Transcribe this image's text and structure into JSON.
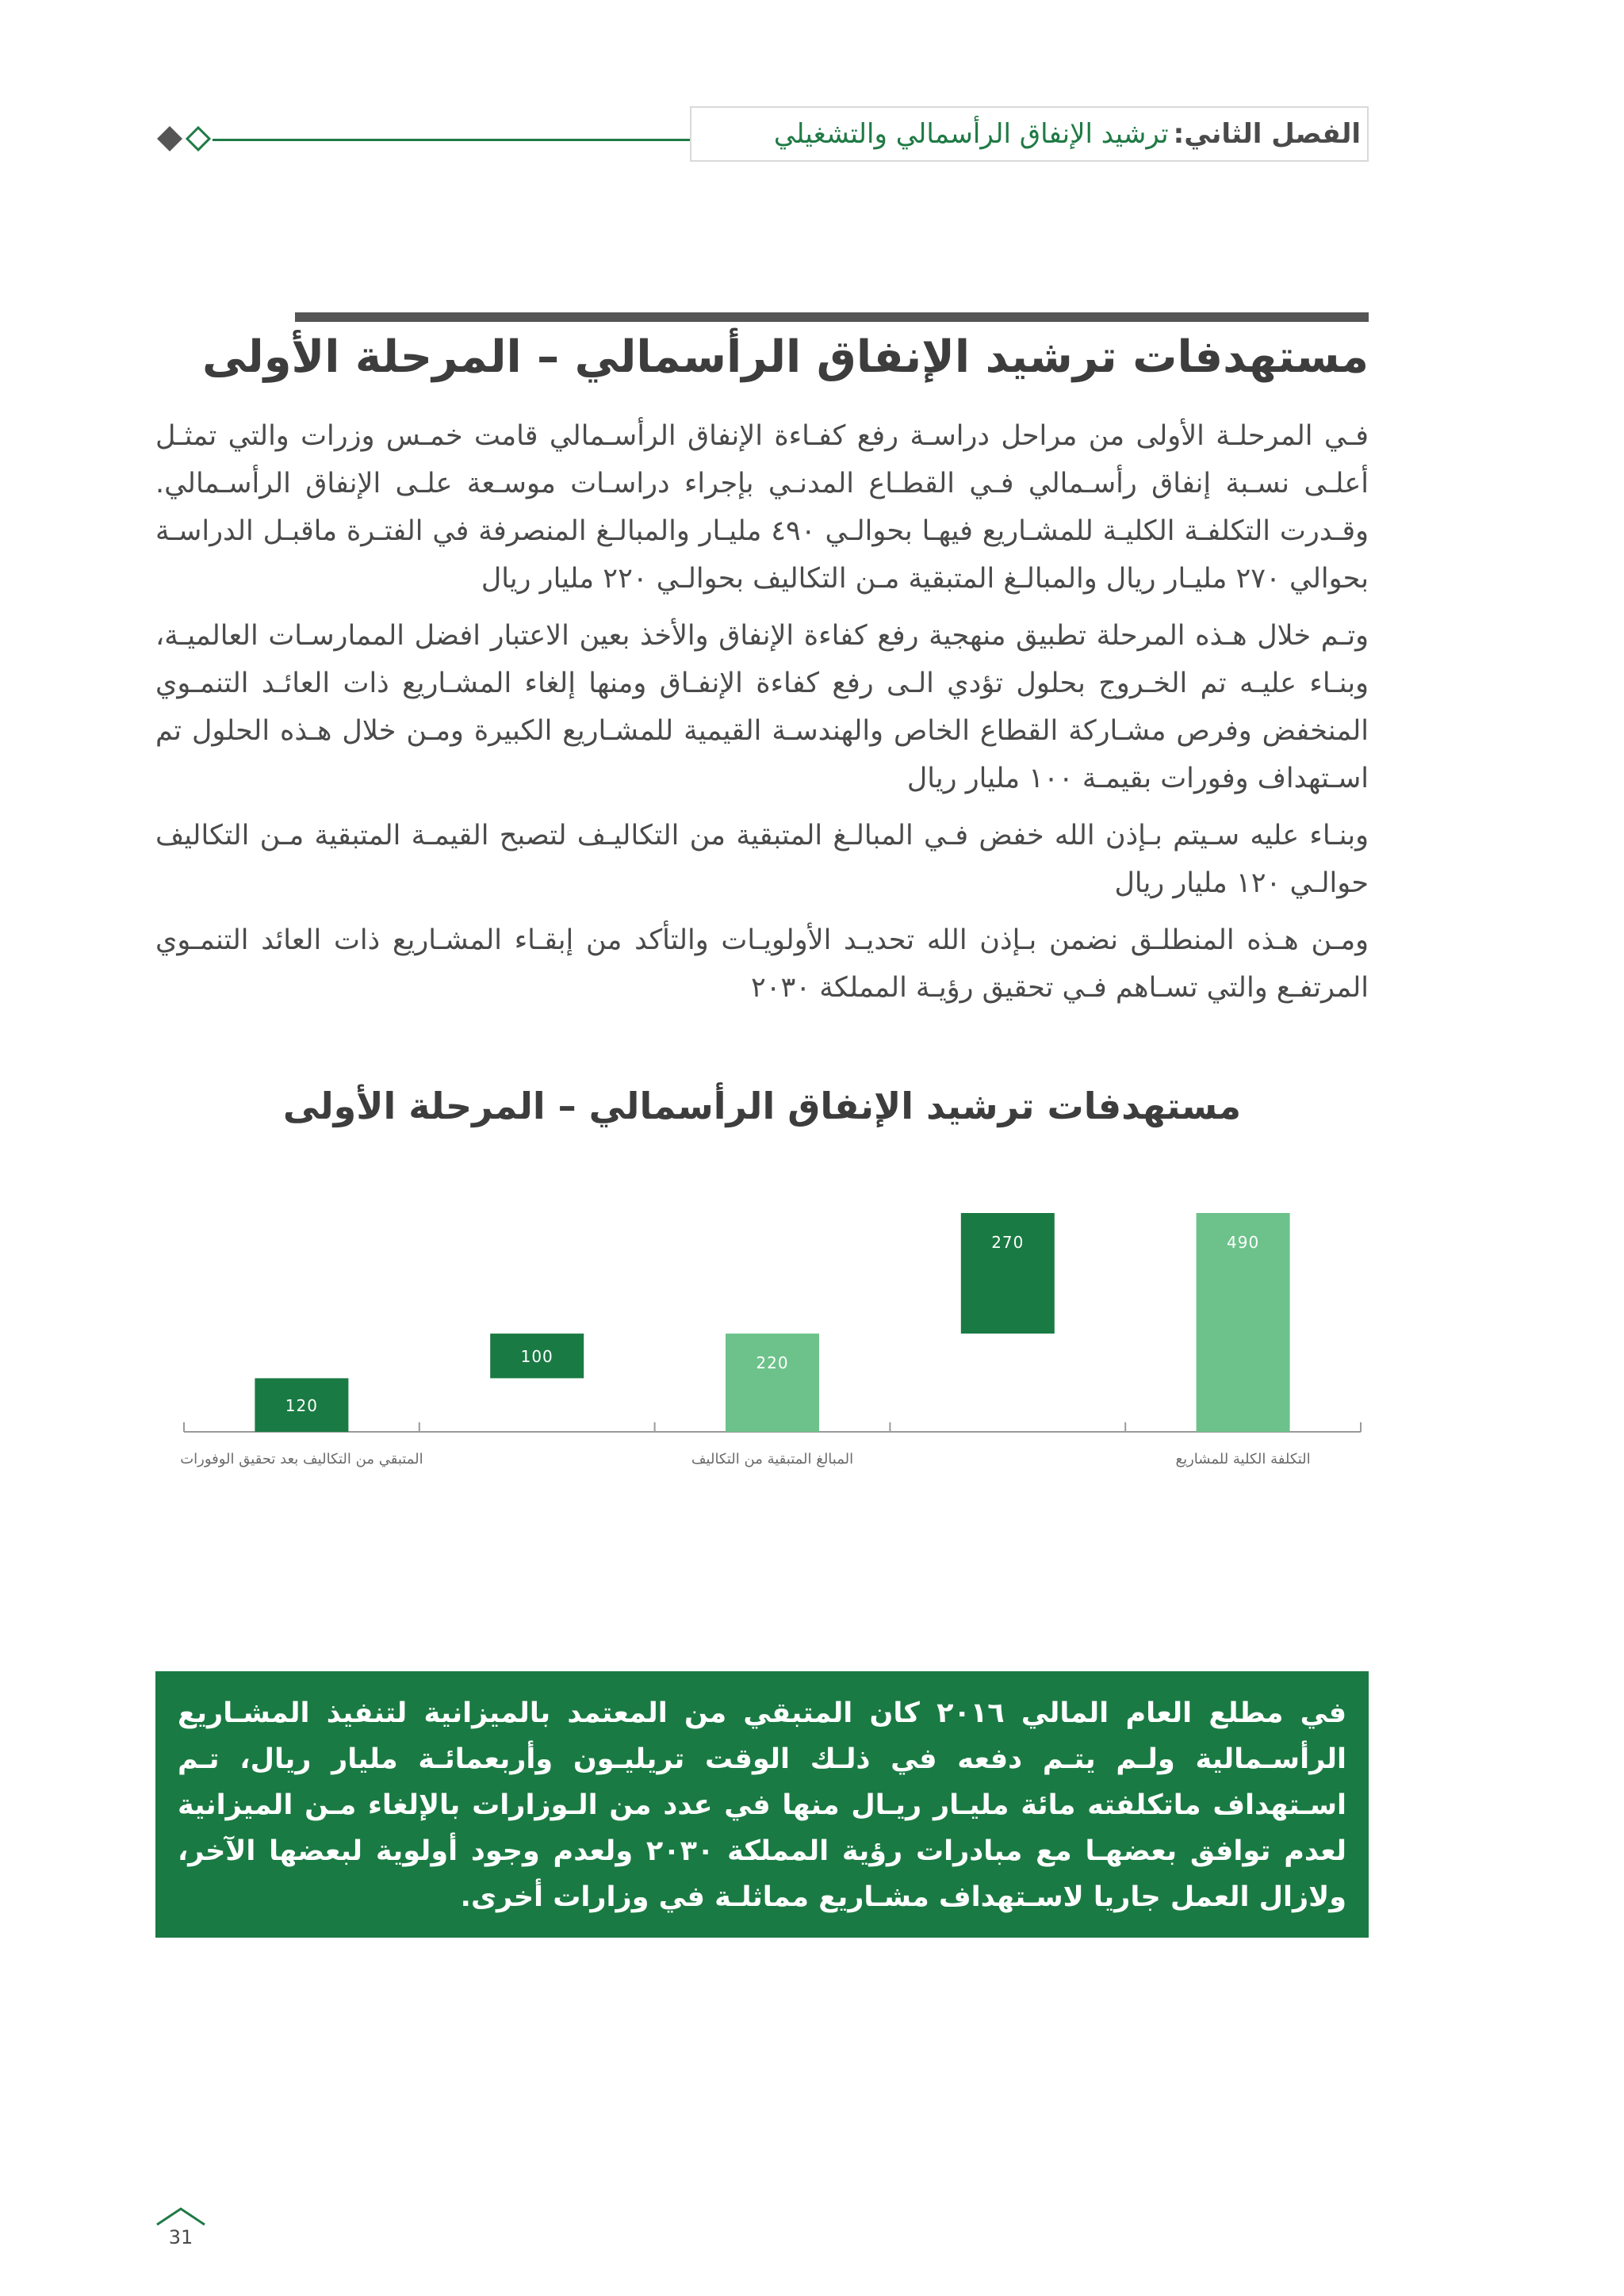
{
  "header": {
    "chapter_label": "الفصل الثاني:",
    "chapter_title": "ترشيد الإنفاق الرأسمالي والتشغيلي"
  },
  "section": {
    "title": "مستهدفات ترشيد الإنفاق الرأسمالي – المرحلة الأولى",
    "paragraphs": [
      "فـي المرحلـة الأولى من مراحل دراسـة رفع كفـاءة الإنفاق الرأسـمالي قامت خمـس وزرات والتي تمثـل أعلـى نسـبة إنفاق رأسـمالي فـي القطـاع المدنـي بإجراء دراسـات موسـعة علـى الإنفاق الرأسـمالي. وقـدرت التكلفـة الكليـة للمشـاريع فيهـا بحوالـي ٤٩٠ مليـار والمبالـغ المنصرفة في الفتـرة ماقبـل الدراسـة بحوالي ٢٧٠ مليـار ريال والمبالـغ المتبقية مـن التكاليف بحوالـي ٢٢٠ مليار ريال",
      "وتـم خلال هـذه المرحلة تطبيق منهجية رفع كفاءة الإنفاق والأخذ بعين الاعتبار افضل الممارسـات العالميـة، وبنـاء عليـه تم الخـروج بحلول تؤدي الـى رفع كفاءة الإنفـاق ومنها إلغاء المشـاريع ذات العائـد التنمـوي المنخفض وفرص مشـاركة القطاع الخاص والهندسـة القيمية للمشـاريع الكبيرة ومـن خلال هـذه الحلول تم اسـتهداف وفورات بقيمـة ١٠٠ مليار ريال",
      "وبنـاء عليه سـيتم بـإذن الله خفض فـي المبالـغ المتبقية من التكاليـف لتصبح القيمـة المتبقية مـن التكاليف حوالـي ١٢٠ مليار ريال",
      "ومـن هـذه المنطلـق نضمن بـإذن الله تحديـد الأولويـات والتأكد من إبقـاء المشـاريع ذات العائد التنمـوي المرتفـع والتي تسـاهم فـي تحقيق رؤيـة المملكة ٢٠٣٠"
    ]
  },
  "chart_data": {
    "type": "bar",
    "subtype": "waterfall",
    "title": "مستهدفات ترشيد الإنفاق الرأسمالي – المرحلة الأولى",
    "categories": [
      "المتبقي من التكاليف بعد تحقيق الوفورات",
      "",
      "المبالغ المتبقية من التكاليف",
      "",
      "التكلفة الكلية للمشاريع"
    ],
    "bars": [
      {
        "value": 120,
        "base": 0,
        "label": "120",
        "color": "#1a7a43"
      },
      {
        "value": 100,
        "base": 120,
        "label": "100",
        "color": "#1a7a43"
      },
      {
        "value": 220,
        "base": 0,
        "label": "220",
        "color": "#6cc28a"
      },
      {
        "value": 270,
        "base": 220,
        "label": "270",
        "color": "#1a7a43"
      },
      {
        "value": 490,
        "base": 0,
        "label": "490",
        "color": "#6cc28a"
      }
    ],
    "ylim": [
      0,
      490
    ],
    "grid": false,
    "legend": "none"
  },
  "note": {
    "text": "في مطلع العام المالي ٢٠١٦ كان المتبقي من المعتمد بالميزانية لتنفيذ المشـاريع الرأسـمالية ولـم يتـم دفعه في ذلـك الوقت تريليـون وأربعمائـة مليار ريال، تـم اسـتهداف ماتكلفته مائة مليـار ريـال منها في عدد من الـوزارات بالإلغاء مـن الميزانية لعدم توافق بعضهـا مع مبادرات رؤية المملكة ٢٠٣٠ ولعدم وجود أولوية لبعضها الآخر، ولازال العمل جاريا لاسـتهداف مشـاريع مماثلـة في وزارات أخرى."
  },
  "page": {
    "number": "31"
  },
  "colors": {
    "accent": "#1a7a43",
    "accent_light": "#6cc28a",
    "text": "#4a4a4a",
    "rule": "#555555"
  }
}
